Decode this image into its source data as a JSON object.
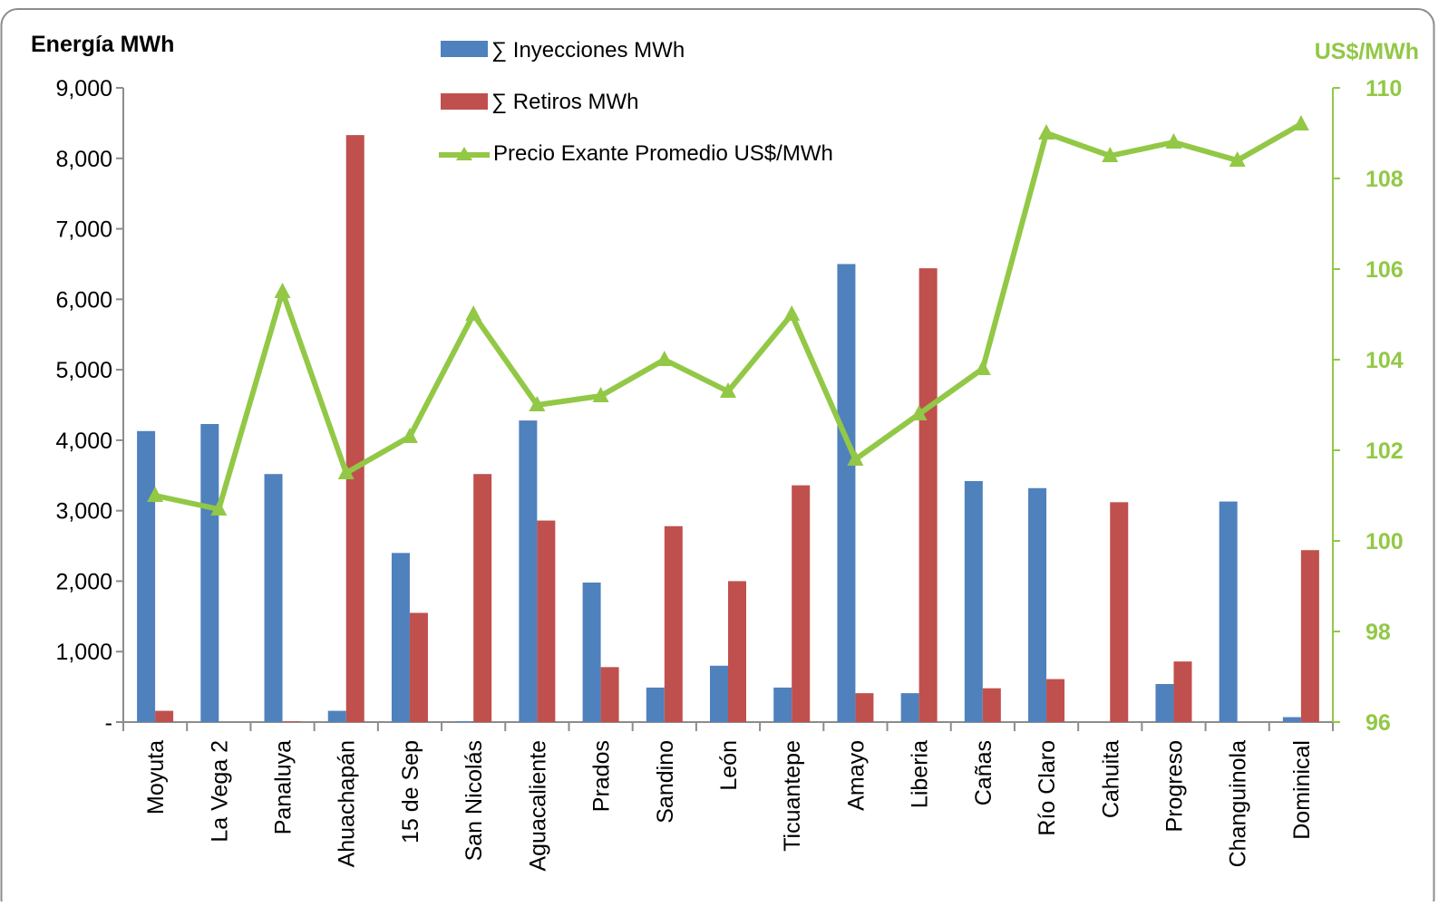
{
  "chart_data": {
    "type": "bar",
    "left_axis_title": "Energía MWh",
    "right_axis_title": "US$/MWh",
    "categories": [
      "Moyuta",
      "La Vega 2",
      "Panaluya",
      "Ahuachapán",
      "15 de Sep",
      "San Nicolás",
      "Aguacaliente",
      "Prados",
      "Sandino",
      "León",
      "Ticuantepe",
      "Amayo",
      "Liberia",
      "Cañas",
      "Río Claro",
      "Cahuita",
      "Progreso",
      "Changuinola",
      "Dominical"
    ],
    "series": [
      {
        "name": "∑ Inyecciones MWh",
        "kind": "bar",
        "axis": "left",
        "color": "#4f81bd",
        "values": [
          4130,
          4230,
          3520,
          160,
          2400,
          10,
          4280,
          1980,
          490,
          800,
          490,
          6500,
          410,
          3420,
          3320,
          0,
          540,
          3130,
          70
        ]
      },
      {
        "name": "∑ Retiros MWh",
        "kind": "bar",
        "axis": "left",
        "color": "#c0504d",
        "values": [
          160,
          0,
          10,
          8330,
          1550,
          3520,
          2860,
          780,
          2780,
          2000,
          3360,
          410,
          6440,
          480,
          610,
          3120,
          860,
          0,
          2440
        ]
      },
      {
        "name": "Precio Exante Promedio US$/MWh",
        "kind": "line",
        "axis": "right",
        "color": "#92c846",
        "marker": "triangle",
        "values": [
          101.0,
          100.7,
          105.5,
          101.5,
          102.3,
          105.0,
          103.0,
          103.2,
          104.0,
          103.3,
          105.0,
          101.8,
          102.8,
          103.8,
          109.0,
          108.5,
          108.8,
          108.4,
          109.2
        ]
      }
    ],
    "left_axis": {
      "min": 0,
      "max": 9000,
      "step": 1000,
      "tick_labels": [
        "-",
        "1,000",
        "2,000",
        "3,000",
        "4,000",
        "5,000",
        "6,000",
        "7,000",
        "8,000",
        "9,000"
      ]
    },
    "right_axis": {
      "min": 96,
      "max": 110,
      "step": 2,
      "tick_labels": [
        "96",
        "98",
        "100",
        "102",
        "104",
        "106",
        "108",
        "110"
      ]
    },
    "legend_position": "top-center",
    "grid": false
  }
}
